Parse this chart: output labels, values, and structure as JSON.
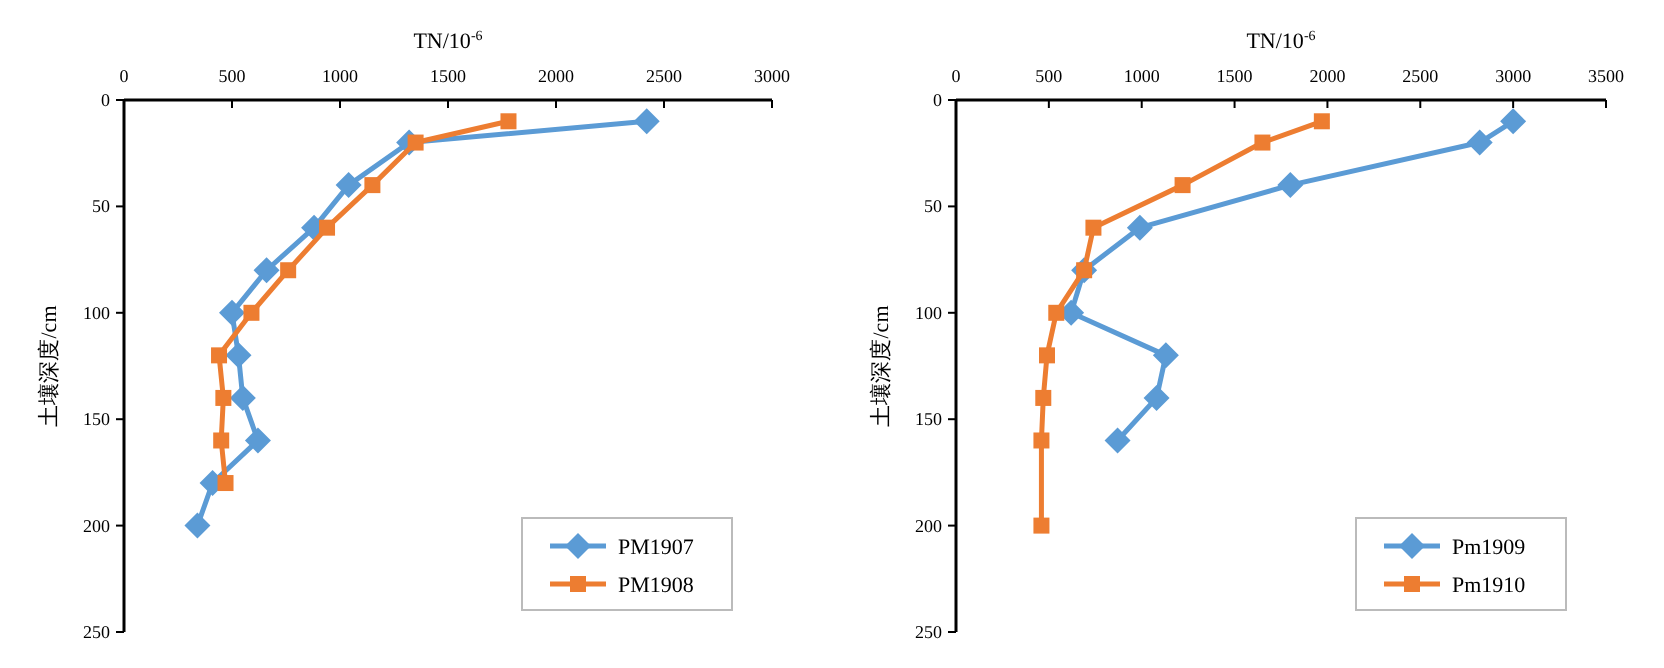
{
  "chart_data": [
    {
      "type": "line",
      "xlabel": "TN/10$^{-6}$",
      "ylabel": "土壤深度/cm",
      "xlim": [
        0,
        3000
      ],
      "xticks": [
        0,
        500,
        1000,
        1500,
        2000,
        2500,
        3000
      ],
      "ylim": [
        250,
        0
      ],
      "yticks": [
        0,
        50,
        100,
        150,
        200,
        250
      ],
      "legend": "bottom right",
      "series": [
        {
          "name": "PM1907",
          "color": "#5b9bd5",
          "marker": "diamond",
          "x": [
            2420,
            1320,
            1040,
            880,
            660,
            500,
            530,
            550,
            620,
            410,
            340
          ],
          "values": [
            10,
            20,
            40,
            60,
            80,
            100,
            120,
            140,
            160,
            180,
            200
          ]
        },
        {
          "name": "PM1908",
          "color": "#ed7d31",
          "marker": "square",
          "x": [
            1780,
            1350,
            1150,
            940,
            760,
            590,
            440,
            460,
            450,
            470
          ],
          "values": [
            10,
            20,
            40,
            60,
            80,
            100,
            120,
            140,
            160,
            180
          ]
        }
      ]
    },
    {
      "type": "line",
      "xlabel": "TN/10$^{-6}$",
      "ylabel": "土壤深度/cm",
      "xlim": [
        0,
        3500
      ],
      "xticks": [
        0,
        500,
        1000,
        1500,
        2000,
        2500,
        3000,
        3500
      ],
      "ylim": [
        250,
        0
      ],
      "yticks": [
        0,
        50,
        100,
        150,
        200,
        250
      ],
      "legend": "bottom right",
      "series": [
        {
          "name": "Pm1909",
          "color": "#5b9bd5",
          "marker": "diamond",
          "x": [
            3000,
            2820,
            1800,
            990,
            690,
            620,
            1130,
            1080,
            870
          ],
          "values": [
            10,
            20,
            40,
            60,
            80,
            100,
            120,
            140,
            160
          ]
        },
        {
          "name": "Pm1910",
          "color": "#ed7d31",
          "marker": "square",
          "x": [
            1970,
            1650,
            1220,
            740,
            690,
            540,
            490,
            470,
            460,
            460
          ],
          "values": [
            10,
            20,
            40,
            60,
            80,
            100,
            120,
            140,
            160,
            200
          ]
        }
      ]
    }
  ]
}
